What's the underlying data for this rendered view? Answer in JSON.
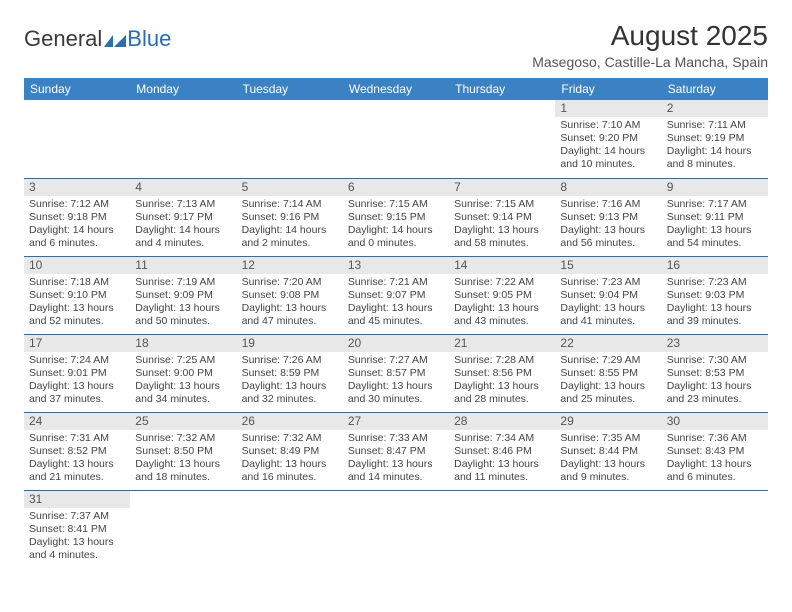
{
  "brand": {
    "part1": "General",
    "part2": "Blue"
  },
  "title": "August 2025",
  "location": "Masegoso, Castille-La Mancha, Spain",
  "colors": {
    "header_bg": "#3b82c4",
    "header_text": "#ffffff",
    "daynum_bg": "#e8e8e8",
    "row_border": "#2a6db0",
    "body_text": "#444444",
    "title_text": "#333333"
  },
  "typography": {
    "title_fontsize": 28,
    "subtitle_fontsize": 14,
    "header_fontsize": 12,
    "cell_fontsize": 10.5
  },
  "weekdays": [
    "Sunday",
    "Monday",
    "Tuesday",
    "Wednesday",
    "Thursday",
    "Friday",
    "Saturday"
  ],
  "weeks": [
    [
      null,
      null,
      null,
      null,
      null,
      {
        "n": "1",
        "sr": "7:10 AM",
        "ss": "9:20 PM",
        "dh": "14",
        "dm": "10"
      },
      {
        "n": "2",
        "sr": "7:11 AM",
        "ss": "9:19 PM",
        "dh": "14",
        "dm": "8"
      }
    ],
    [
      {
        "n": "3",
        "sr": "7:12 AM",
        "ss": "9:18 PM",
        "dh": "14",
        "dm": "6"
      },
      {
        "n": "4",
        "sr": "7:13 AM",
        "ss": "9:17 PM",
        "dh": "14",
        "dm": "4"
      },
      {
        "n": "5",
        "sr": "7:14 AM",
        "ss": "9:16 PM",
        "dh": "14",
        "dm": "2"
      },
      {
        "n": "6",
        "sr": "7:15 AM",
        "ss": "9:15 PM",
        "dh": "14",
        "dm": "0"
      },
      {
        "n": "7",
        "sr": "7:15 AM",
        "ss": "9:14 PM",
        "dh": "13",
        "dm": "58"
      },
      {
        "n": "8",
        "sr": "7:16 AM",
        "ss": "9:13 PM",
        "dh": "13",
        "dm": "56"
      },
      {
        "n": "9",
        "sr": "7:17 AM",
        "ss": "9:11 PM",
        "dh": "13",
        "dm": "54"
      }
    ],
    [
      {
        "n": "10",
        "sr": "7:18 AM",
        "ss": "9:10 PM",
        "dh": "13",
        "dm": "52"
      },
      {
        "n": "11",
        "sr": "7:19 AM",
        "ss": "9:09 PM",
        "dh": "13",
        "dm": "50"
      },
      {
        "n": "12",
        "sr": "7:20 AM",
        "ss": "9:08 PM",
        "dh": "13",
        "dm": "47"
      },
      {
        "n": "13",
        "sr": "7:21 AM",
        "ss": "9:07 PM",
        "dh": "13",
        "dm": "45"
      },
      {
        "n": "14",
        "sr": "7:22 AM",
        "ss": "9:05 PM",
        "dh": "13",
        "dm": "43"
      },
      {
        "n": "15",
        "sr": "7:23 AM",
        "ss": "9:04 PM",
        "dh": "13",
        "dm": "41"
      },
      {
        "n": "16",
        "sr": "7:23 AM",
        "ss": "9:03 PM",
        "dh": "13",
        "dm": "39"
      }
    ],
    [
      {
        "n": "17",
        "sr": "7:24 AM",
        "ss": "9:01 PM",
        "dh": "13",
        "dm": "37"
      },
      {
        "n": "18",
        "sr": "7:25 AM",
        "ss": "9:00 PM",
        "dh": "13",
        "dm": "34"
      },
      {
        "n": "19",
        "sr": "7:26 AM",
        "ss": "8:59 PM",
        "dh": "13",
        "dm": "32"
      },
      {
        "n": "20",
        "sr": "7:27 AM",
        "ss": "8:57 PM",
        "dh": "13",
        "dm": "30"
      },
      {
        "n": "21",
        "sr": "7:28 AM",
        "ss": "8:56 PM",
        "dh": "13",
        "dm": "28"
      },
      {
        "n": "22",
        "sr": "7:29 AM",
        "ss": "8:55 PM",
        "dh": "13",
        "dm": "25"
      },
      {
        "n": "23",
        "sr": "7:30 AM",
        "ss": "8:53 PM",
        "dh": "13",
        "dm": "23"
      }
    ],
    [
      {
        "n": "24",
        "sr": "7:31 AM",
        "ss": "8:52 PM",
        "dh": "13",
        "dm": "21"
      },
      {
        "n": "25",
        "sr": "7:32 AM",
        "ss": "8:50 PM",
        "dh": "13",
        "dm": "18"
      },
      {
        "n": "26",
        "sr": "7:32 AM",
        "ss": "8:49 PM",
        "dh": "13",
        "dm": "16"
      },
      {
        "n": "27",
        "sr": "7:33 AM",
        "ss": "8:47 PM",
        "dh": "13",
        "dm": "14"
      },
      {
        "n": "28",
        "sr": "7:34 AM",
        "ss": "8:46 PM",
        "dh": "13",
        "dm": "11"
      },
      {
        "n": "29",
        "sr": "7:35 AM",
        "ss": "8:44 PM",
        "dh": "13",
        "dm": "9"
      },
      {
        "n": "30",
        "sr": "7:36 AM",
        "ss": "8:43 PM",
        "dh": "13",
        "dm": "6"
      }
    ],
    [
      {
        "n": "31",
        "sr": "7:37 AM",
        "ss": "8:41 PM",
        "dh": "13",
        "dm": "4"
      },
      null,
      null,
      null,
      null,
      null,
      null
    ]
  ]
}
